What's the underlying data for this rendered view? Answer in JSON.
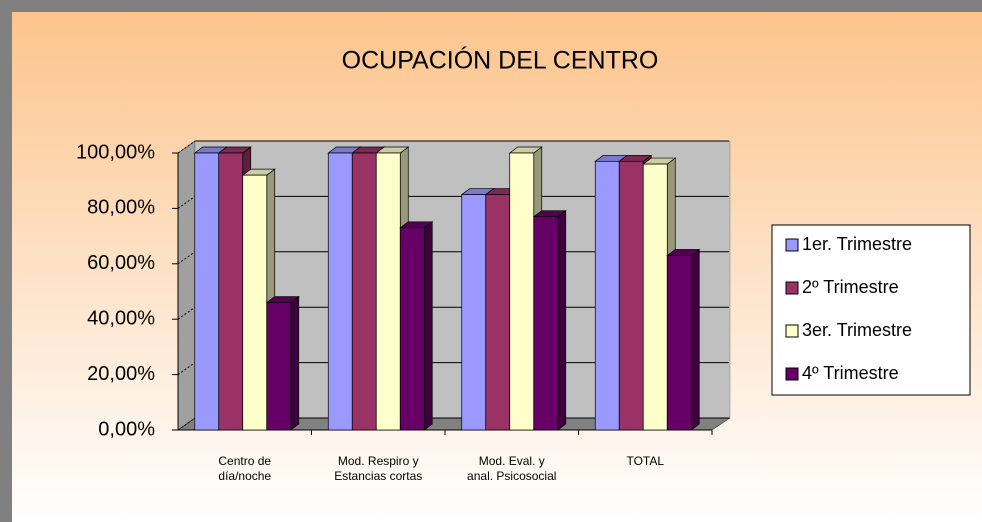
{
  "chart_data": {
    "type": "bar3d",
    "title": "OCUPACIÓN DEL CENTRO",
    "categories": [
      [
        "Centro de",
        "día/noche"
      ],
      [
        "Mod. Respiro y",
        "Estancias cortas"
      ],
      [
        "Mod. Eval. y",
        "anal. Psicosocial"
      ],
      [
        "TOTAL"
      ]
    ],
    "series": [
      {
        "name": "1er. Trimestre",
        "color": "#9999ff",
        "values": [
          100,
          100,
          85,
          97
        ]
      },
      {
        "name": "2º Trimestre",
        "color": "#993366",
        "values": [
          100,
          100,
          85,
          97
        ]
      },
      {
        "name": "3er. Trimestre",
        "color": "#ffffcc",
        "values": [
          92,
          100,
          100,
          96
        ]
      },
      {
        "name": "4º Trimestre",
        "color": "#660066",
        "values": [
          46,
          73,
          77,
          63
        ]
      }
    ],
    "ylim": [
      0,
      100
    ],
    "yticks": [
      {
        "value": 0,
        "label": "0,00%"
      },
      {
        "value": 20,
        "label": "20,00%"
      },
      {
        "value": 40,
        "label": "40,00%"
      },
      {
        "value": 60,
        "label": "60,00%"
      },
      {
        "value": 80,
        "label": "80,00%"
      },
      {
        "value": 100,
        "label": "100,00%"
      }
    ],
    "grid": true,
    "legend": "right"
  }
}
